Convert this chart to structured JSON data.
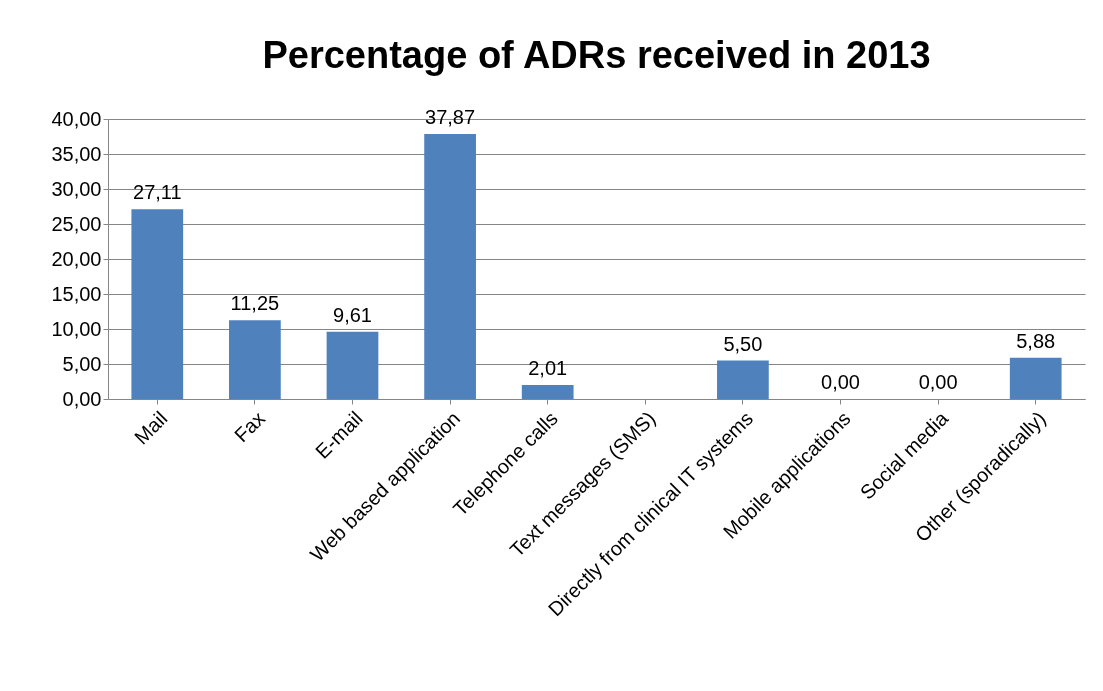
{
  "chart_data": {
    "type": "bar",
    "title": "Percentage of ADRs received in 2013",
    "categories": [
      "Mail",
      "Fax",
      "E-mail",
      "Web based application",
      "Telephone calls",
      "Text messages (SMS)",
      "Directly from clinical IT systems",
      "Mobile applications",
      "Social media",
      "Other (sporadically)"
    ],
    "values": [
      27.11,
      11.25,
      9.61,
      37.87,
      2.01,
      null,
      5.5,
      0,
      0,
      5.88
    ],
    "value_labels": [
      "27,11",
      "11,25",
      "9,61",
      "37,87",
      "2,01",
      null,
      "5,50",
      "0,00",
      "0,00",
      "5,88"
    ],
    "color": "#4f81bd",
    "ylim": [
      0,
      40
    ],
    "yticks": [
      {
        "value": 0,
        "label": "0,00"
      },
      {
        "value": 5,
        "label": "5,00"
      },
      {
        "value": 10,
        "label": "10,00"
      },
      {
        "value": 15,
        "label": "15,00"
      },
      {
        "value": 20,
        "label": "20,00"
      },
      {
        "value": 25,
        "label": "25,00"
      },
      {
        "value": 30,
        "label": "30,00"
      },
      {
        "value": 35,
        "label": "35,00"
      },
      {
        "value": 40,
        "label": "40,00"
      }
    ],
    "grid": "y"
  }
}
